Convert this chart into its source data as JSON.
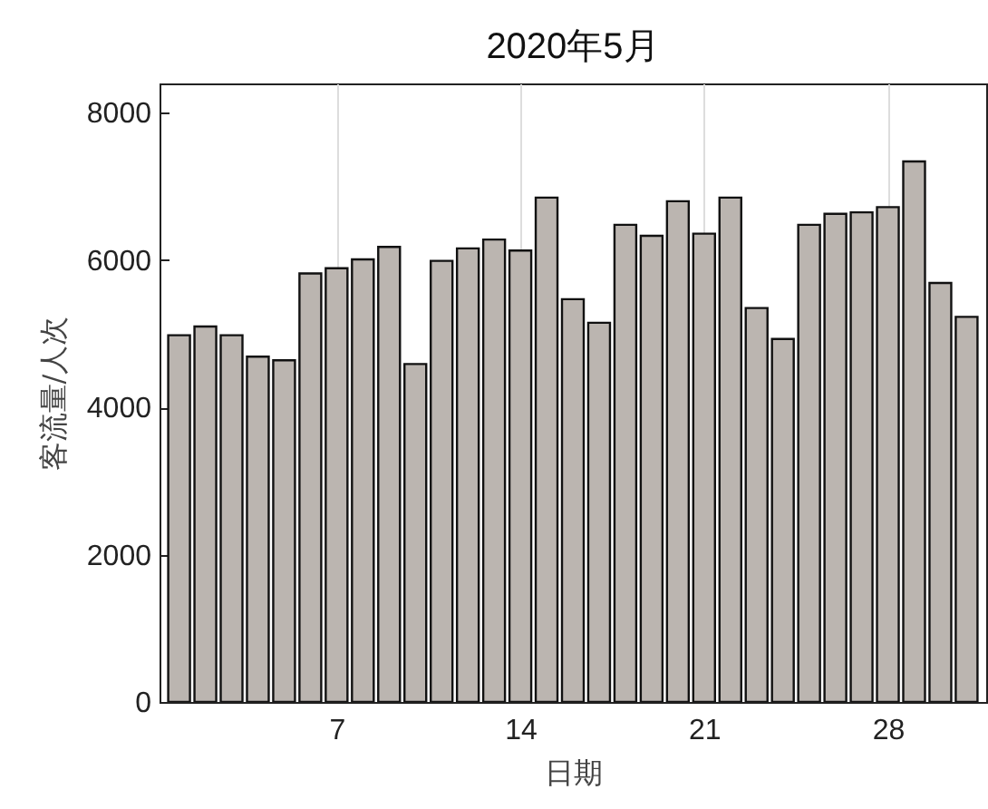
{
  "chart_data": {
    "type": "bar",
    "title": "2020年5月",
    "xlabel": "日期",
    "ylabel": "客流量/人次",
    "x": [
      1,
      2,
      3,
      4,
      5,
      6,
      7,
      8,
      9,
      10,
      11,
      12,
      13,
      14,
      15,
      16,
      17,
      18,
      19,
      20,
      21,
      22,
      23,
      24,
      25,
      26,
      27,
      28,
      29,
      30,
      31
    ],
    "values": [
      4980,
      5100,
      4980,
      4690,
      4640,
      5820,
      5890,
      6010,
      6180,
      4590,
      5990,
      6160,
      6280,
      6130,
      6850,
      5470,
      5150,
      6480,
      6330,
      6800,
      6360,
      6850,
      5350,
      4930,
      6480,
      6630,
      6650,
      6720,
      7340,
      5690,
      5230
    ],
    "color": "#bbb5b0",
    "xlim": [
      0.6,
      31.4
    ],
    "xticks": [
      7,
      14,
      21,
      28
    ],
    "ylim": [
      0,
      8400
    ],
    "yticks": [
      0,
      {
        "value": 2000,
        "label": "2000"
      },
      {
        "value": 4000,
        "label": "4000"
      },
      {
        "value": 6000,
        "label": "6000"
      },
      {
        "value": 8000,
        "label": "8000"
      }
    ],
    "grid": "x"
  }
}
